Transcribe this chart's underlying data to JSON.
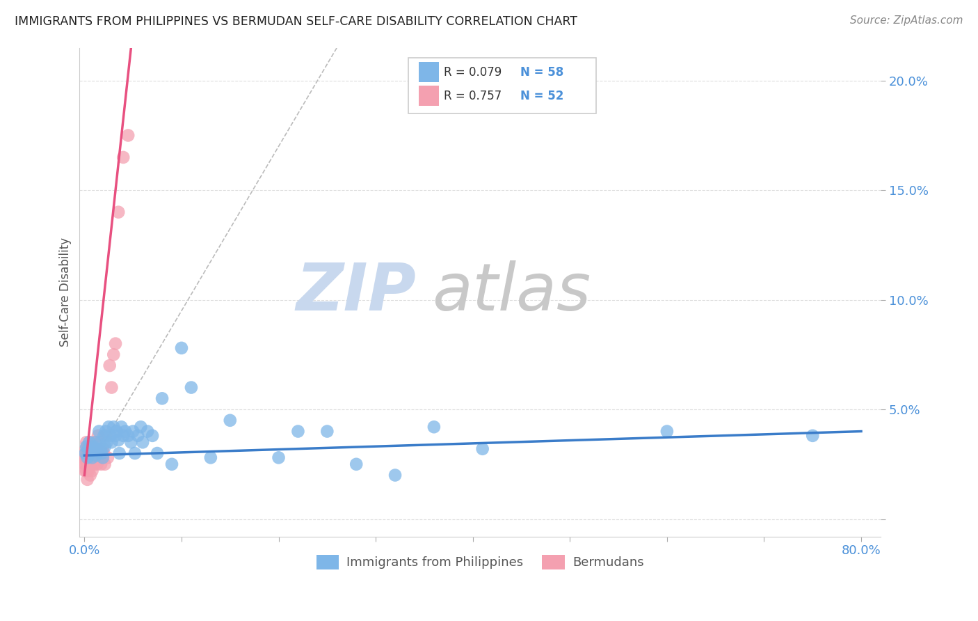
{
  "title": "IMMIGRANTS FROM PHILIPPINES VS BERMUDAN SELF-CARE DISABILITY CORRELATION CHART",
  "source": "Source: ZipAtlas.com",
  "ylabel_label": "Self-Care Disability",
  "x_min": -0.005,
  "x_max": 0.82,
  "y_min": -0.008,
  "y_max": 0.215,
  "x_ticks": [
    0.0,
    0.1,
    0.2,
    0.3,
    0.4,
    0.5,
    0.6,
    0.7,
    0.8
  ],
  "x_tick_labels": [
    "0.0%",
    "",
    "",
    "",
    "",
    "",
    "",
    "",
    "80.0%"
  ],
  "y_ticks": [
    0.0,
    0.05,
    0.1,
    0.15,
    0.2
  ],
  "y_tick_labels": [
    "",
    "5.0%",
    "10.0%",
    "15.0%",
    "20.0%"
  ],
  "blue_color": "#7EB6E8",
  "pink_color": "#F4A0B0",
  "blue_line_color": "#3A7CC9",
  "pink_line_color": "#E85080",
  "grid_color": "#DDDDDD",
  "watermark_color_zip": "#C8D8EE",
  "watermark_color_atlas": "#C8C8C8",
  "legend_R_blue": "R = 0.079",
  "legend_N_blue": "N = 58",
  "legend_R_pink": "R = 0.757",
  "legend_N_pink": "N = 52",
  "blue_label": "Immigrants from Philippines",
  "pink_label": "Bermudans",
  "blue_scatter_x": [
    0.001,
    0.002,
    0.003,
    0.004,
    0.005,
    0.006,
    0.007,
    0.008,
    0.009,
    0.01,
    0.011,
    0.012,
    0.013,
    0.015,
    0.016,
    0.017,
    0.018,
    0.019,
    0.02,
    0.021,
    0.022,
    0.023,
    0.025,
    0.027,
    0.028,
    0.03,
    0.032,
    0.033,
    0.035,
    0.036,
    0.038,
    0.04,
    0.042,
    0.045,
    0.048,
    0.05,
    0.052,
    0.055,
    0.058,
    0.06,
    0.065,
    0.07,
    0.075,
    0.08,
    0.09,
    0.1,
    0.11,
    0.13,
    0.15,
    0.2,
    0.22,
    0.25,
    0.28,
    0.32,
    0.36,
    0.41,
    0.6,
    0.75
  ],
  "blue_scatter_y": [
    0.03,
    0.033,
    0.028,
    0.032,
    0.035,
    0.03,
    0.031,
    0.028,
    0.033,
    0.032,
    0.035,
    0.029,
    0.031,
    0.04,
    0.035,
    0.032,
    0.03,
    0.028,
    0.038,
    0.033,
    0.04,
    0.035,
    0.042,
    0.038,
    0.035,
    0.042,
    0.038,
    0.04,
    0.036,
    0.03,
    0.042,
    0.038,
    0.04,
    0.038,
    0.035,
    0.04,
    0.03,
    0.038,
    0.042,
    0.035,
    0.04,
    0.038,
    0.03,
    0.055,
    0.025,
    0.078,
    0.06,
    0.028,
    0.045,
    0.028,
    0.04,
    0.04,
    0.025,
    0.02,
    0.042,
    0.032,
    0.04,
    0.038
  ],
  "pink_scatter_x": [
    0.0003,
    0.0005,
    0.0007,
    0.0009,
    0.001,
    0.0012,
    0.0015,
    0.002,
    0.002,
    0.002,
    0.003,
    0.003,
    0.003,
    0.003,
    0.004,
    0.004,
    0.004,
    0.005,
    0.005,
    0.005,
    0.006,
    0.006,
    0.006,
    0.007,
    0.007,
    0.007,
    0.008,
    0.008,
    0.009,
    0.009,
    0.01,
    0.01,
    0.011,
    0.012,
    0.013,
    0.014,
    0.015,
    0.016,
    0.017,
    0.018,
    0.019,
    0.02,
    0.021,
    0.022,
    0.024,
    0.026,
    0.028,
    0.03,
    0.032,
    0.035,
    0.04,
    0.045
  ],
  "pink_scatter_y": [
    0.025,
    0.022,
    0.028,
    0.025,
    0.03,
    0.027,
    0.032,
    0.028,
    0.022,
    0.035,
    0.025,
    0.018,
    0.03,
    0.033,
    0.028,
    0.022,
    0.032,
    0.025,
    0.03,
    0.028,
    0.025,
    0.02,
    0.032,
    0.028,
    0.035,
    0.025,
    0.03,
    0.022,
    0.028,
    0.033,
    0.025,
    0.03,
    0.032,
    0.035,
    0.025,
    0.038,
    0.028,
    0.03,
    0.025,
    0.028,
    0.032,
    0.03,
    0.025,
    0.038,
    0.028,
    0.07,
    0.06,
    0.075,
    0.08,
    0.14,
    0.165,
    0.175
  ],
  "blue_trend_x": [
    0.0,
    0.8
  ],
  "blue_trend_y": [
    0.029,
    0.04
  ],
  "pink_trend_x": [
    0.0,
    0.048
  ],
  "pink_trend_y": [
    0.02,
    0.215
  ],
  "dashed_line_x": [
    0.0,
    0.26
  ],
  "dashed_line_y": [
    0.02,
    0.215
  ]
}
